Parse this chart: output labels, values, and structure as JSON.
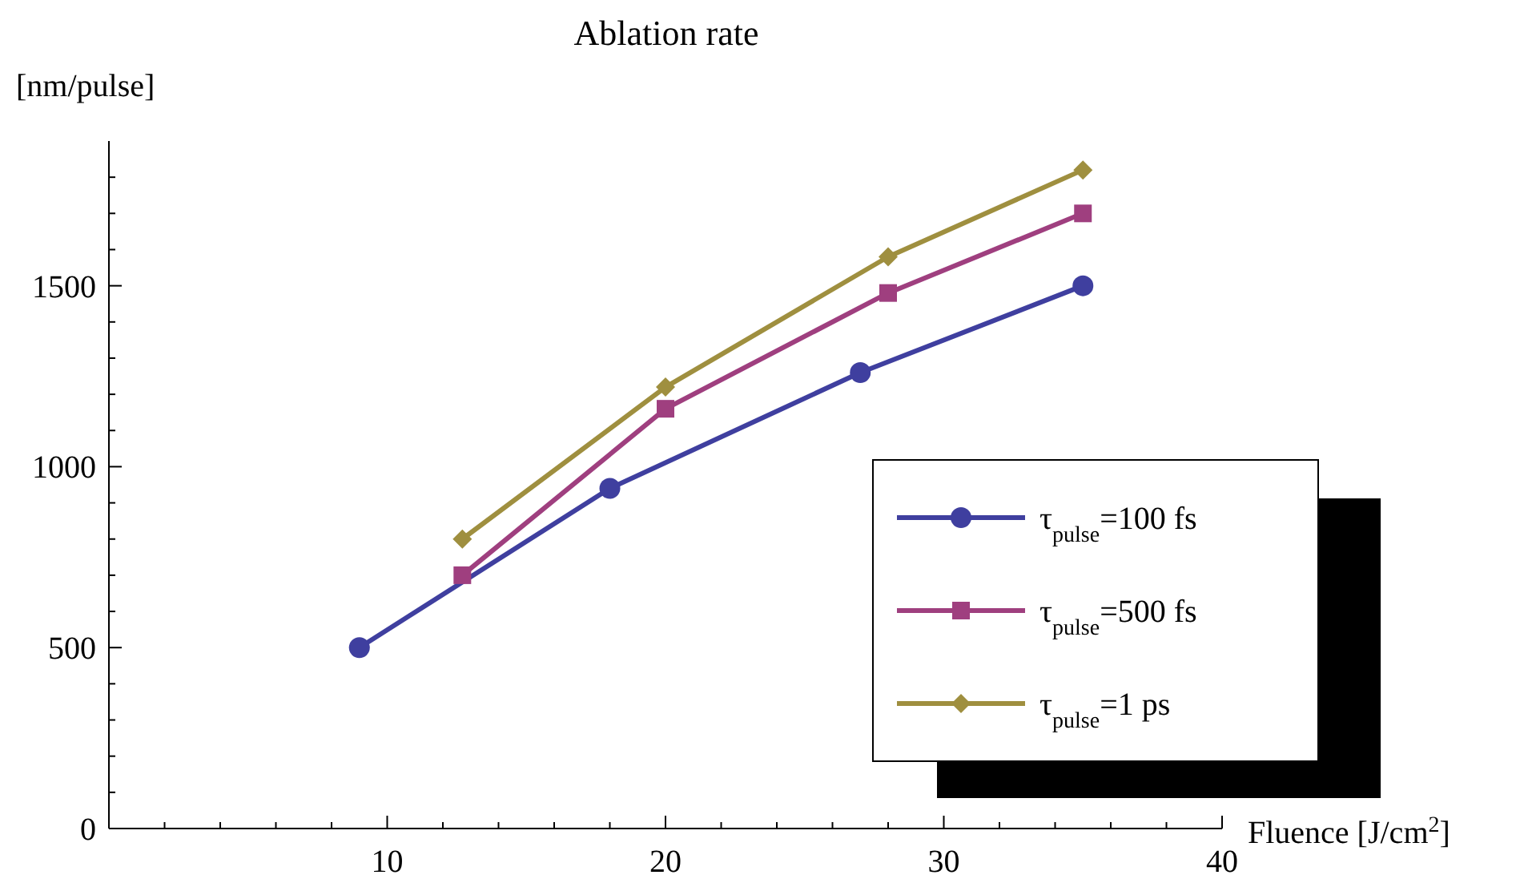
{
  "chart_data": {
    "type": "line",
    "title": "Ablation rate",
    "ylabel": "[nm/pulse]",
    "xlabel": "Fluence [J/cm$^{2}$]",
    "xlim": [
      0,
      40
    ],
    "ylim": [
      0,
      1900
    ],
    "xticks": [
      {
        "value": 0,
        "label": null
      },
      {
        "value": 2,
        "label": null
      },
      {
        "value": 4,
        "label": null
      },
      {
        "value": 6,
        "label": null
      },
      {
        "value": 8,
        "label": null
      },
      10,
      {
        "value": 12,
        "label": null
      },
      {
        "value": 14,
        "label": null
      },
      {
        "value": 16,
        "label": null
      },
      {
        "value": 18,
        "label": null
      },
      20,
      {
        "value": 22,
        "label": null
      },
      {
        "value": 24,
        "label": null
      },
      {
        "value": 26,
        "label": null
      },
      {
        "value": 28,
        "label": null
      },
      30,
      {
        "value": 32,
        "label": null
      },
      {
        "value": 34,
        "label": null
      },
      {
        "value": 36,
        "label": null
      },
      {
        "value": 38,
        "label": null
      },
      40
    ],
    "yticks": [
      0,
      {
        "value": 100,
        "label": null
      },
      {
        "value": 200,
        "label": null
      },
      {
        "value": 300,
        "label": null
      },
      {
        "value": 400,
        "label": null
      },
      500,
      {
        "value": 600,
        "label": null
      },
      {
        "value": 700,
        "label": null
      },
      {
        "value": 800,
        "label": null
      },
      {
        "value": 900,
        "label": null
      },
      1000,
      {
        "value": 1100,
        "label": null
      },
      {
        "value": 1200,
        "label": null
      },
      {
        "value": 1300,
        "label": null
      },
      {
        "value": 1400,
        "label": null
      },
      1500,
      {
        "value": 1600,
        "label": null
      },
      {
        "value": 1700,
        "label": null
      },
      {
        "value": 1800,
        "label": null
      }
    ],
    "legend": "bottom right",
    "grid": false,
    "series": [
      {
        "name": "τ$_{pulse}$=100 fs",
        "color": "#3f3f9f",
        "marker": "circle",
        "x": [
          9,
          18,
          27,
          35
        ],
        "values": [
          500,
          940,
          1260,
          1500
        ]
      },
      {
        "name": "τ$_{pulse}$=500 fs",
        "color": "#9f3f7f",
        "marker": "square",
        "x": [
          12.7,
          20,
          28,
          35
        ],
        "values": [
          700,
          1160,
          1480,
          1700
        ]
      },
      {
        "name": "τ$_{pulse}$=1 ps",
        "color": "#9f8f3f",
        "marker": "diamond",
        "x": [
          12.7,
          20,
          28,
          35
        ],
        "values": [
          800,
          1220,
          1580,
          1820
        ]
      }
    ]
  }
}
